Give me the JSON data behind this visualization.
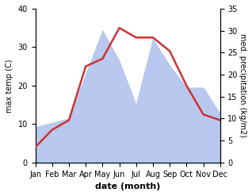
{
  "months": [
    "Jan",
    "Feb",
    "Mar",
    "Apr",
    "May",
    "Jun",
    "Jul",
    "Aug",
    "Sep",
    "Oct",
    "Nov",
    "Dec"
  ],
  "month_positions": [
    1,
    2,
    3,
    4,
    5,
    6,
    7,
    8,
    9,
    10,
    11,
    12
  ],
  "temperature": [
    4,
    8.5,
    11,
    25,
    27,
    35,
    32.5,
    32.5,
    29,
    20,
    12.5,
    11
  ],
  "precipitation": [
    8,
    9,
    10,
    20,
    30,
    23,
    13,
    28,
    22,
    17,
    17,
    11
  ],
  "temp_color": "#cc3333",
  "precip_color": "#b8c8ee",
  "background_color": "#ffffff",
  "ylim_left": [
    0,
    40
  ],
  "ylim_right": [
    0,
    35
  ],
  "yticks_left": [
    0,
    10,
    20,
    30,
    40
  ],
  "yticks_right": [
    0,
    5,
    10,
    15,
    20,
    25,
    30,
    35
  ],
  "xlabel": "date (month)",
  "ylabel_left": "max temp (C)",
  "ylabel_right": "med. precipitation (kg/m2)",
  "linewidth": 1.8
}
